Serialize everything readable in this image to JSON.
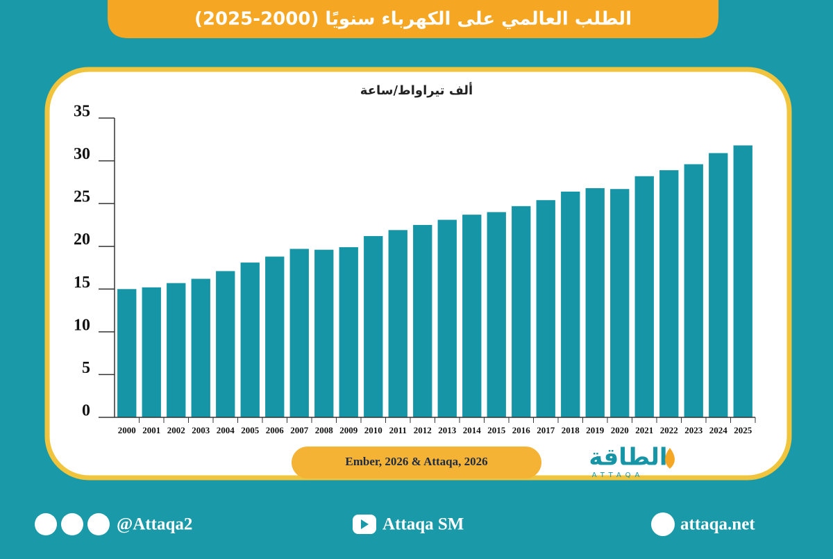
{
  "chart_data": {
    "type": "bar",
    "title": "الطلب العالمي على الكهرباء سنويًا (2000-2025)",
    "y_label": "ألف تيراواط/ساعة",
    "categories": [
      "2000",
      "2001",
      "2002",
      "2003",
      "2004",
      "2005",
      "2006",
      "2007",
      "2008",
      "2009",
      "2010",
      "2011",
      "2012",
      "2013",
      "2014",
      "2015",
      "2016",
      "2017",
      "2018",
      "2019",
      "2020",
      "2021",
      "2022",
      "2023",
      "2024",
      "2025"
    ],
    "values": [
      15.0,
      15.2,
      15.7,
      16.2,
      17.1,
      18.1,
      18.8,
      19.7,
      19.6,
      19.9,
      21.2,
      21.9,
      22.5,
      23.1,
      23.7,
      24.0,
      24.7,
      25.4,
      26.4,
      26.8,
      26.7,
      28.2,
      28.9,
      29.6,
      30.9,
      31.8
    ],
    "color": "#1595a5",
    "ylim": [
      0,
      35
    ],
    "yticks": [
      0,
      5,
      10,
      15,
      20,
      25,
      30,
      35
    ],
    "grid": false
  },
  "source": "Ember, 2026 & Attaqa, 2026",
  "logo": {
    "arabic": "الطاقة",
    "latin": "ATTAQA"
  },
  "footer": {
    "social": "@Attaqa2",
    "youtube": "Attaqa SM",
    "website": "attaqa.net"
  }
}
